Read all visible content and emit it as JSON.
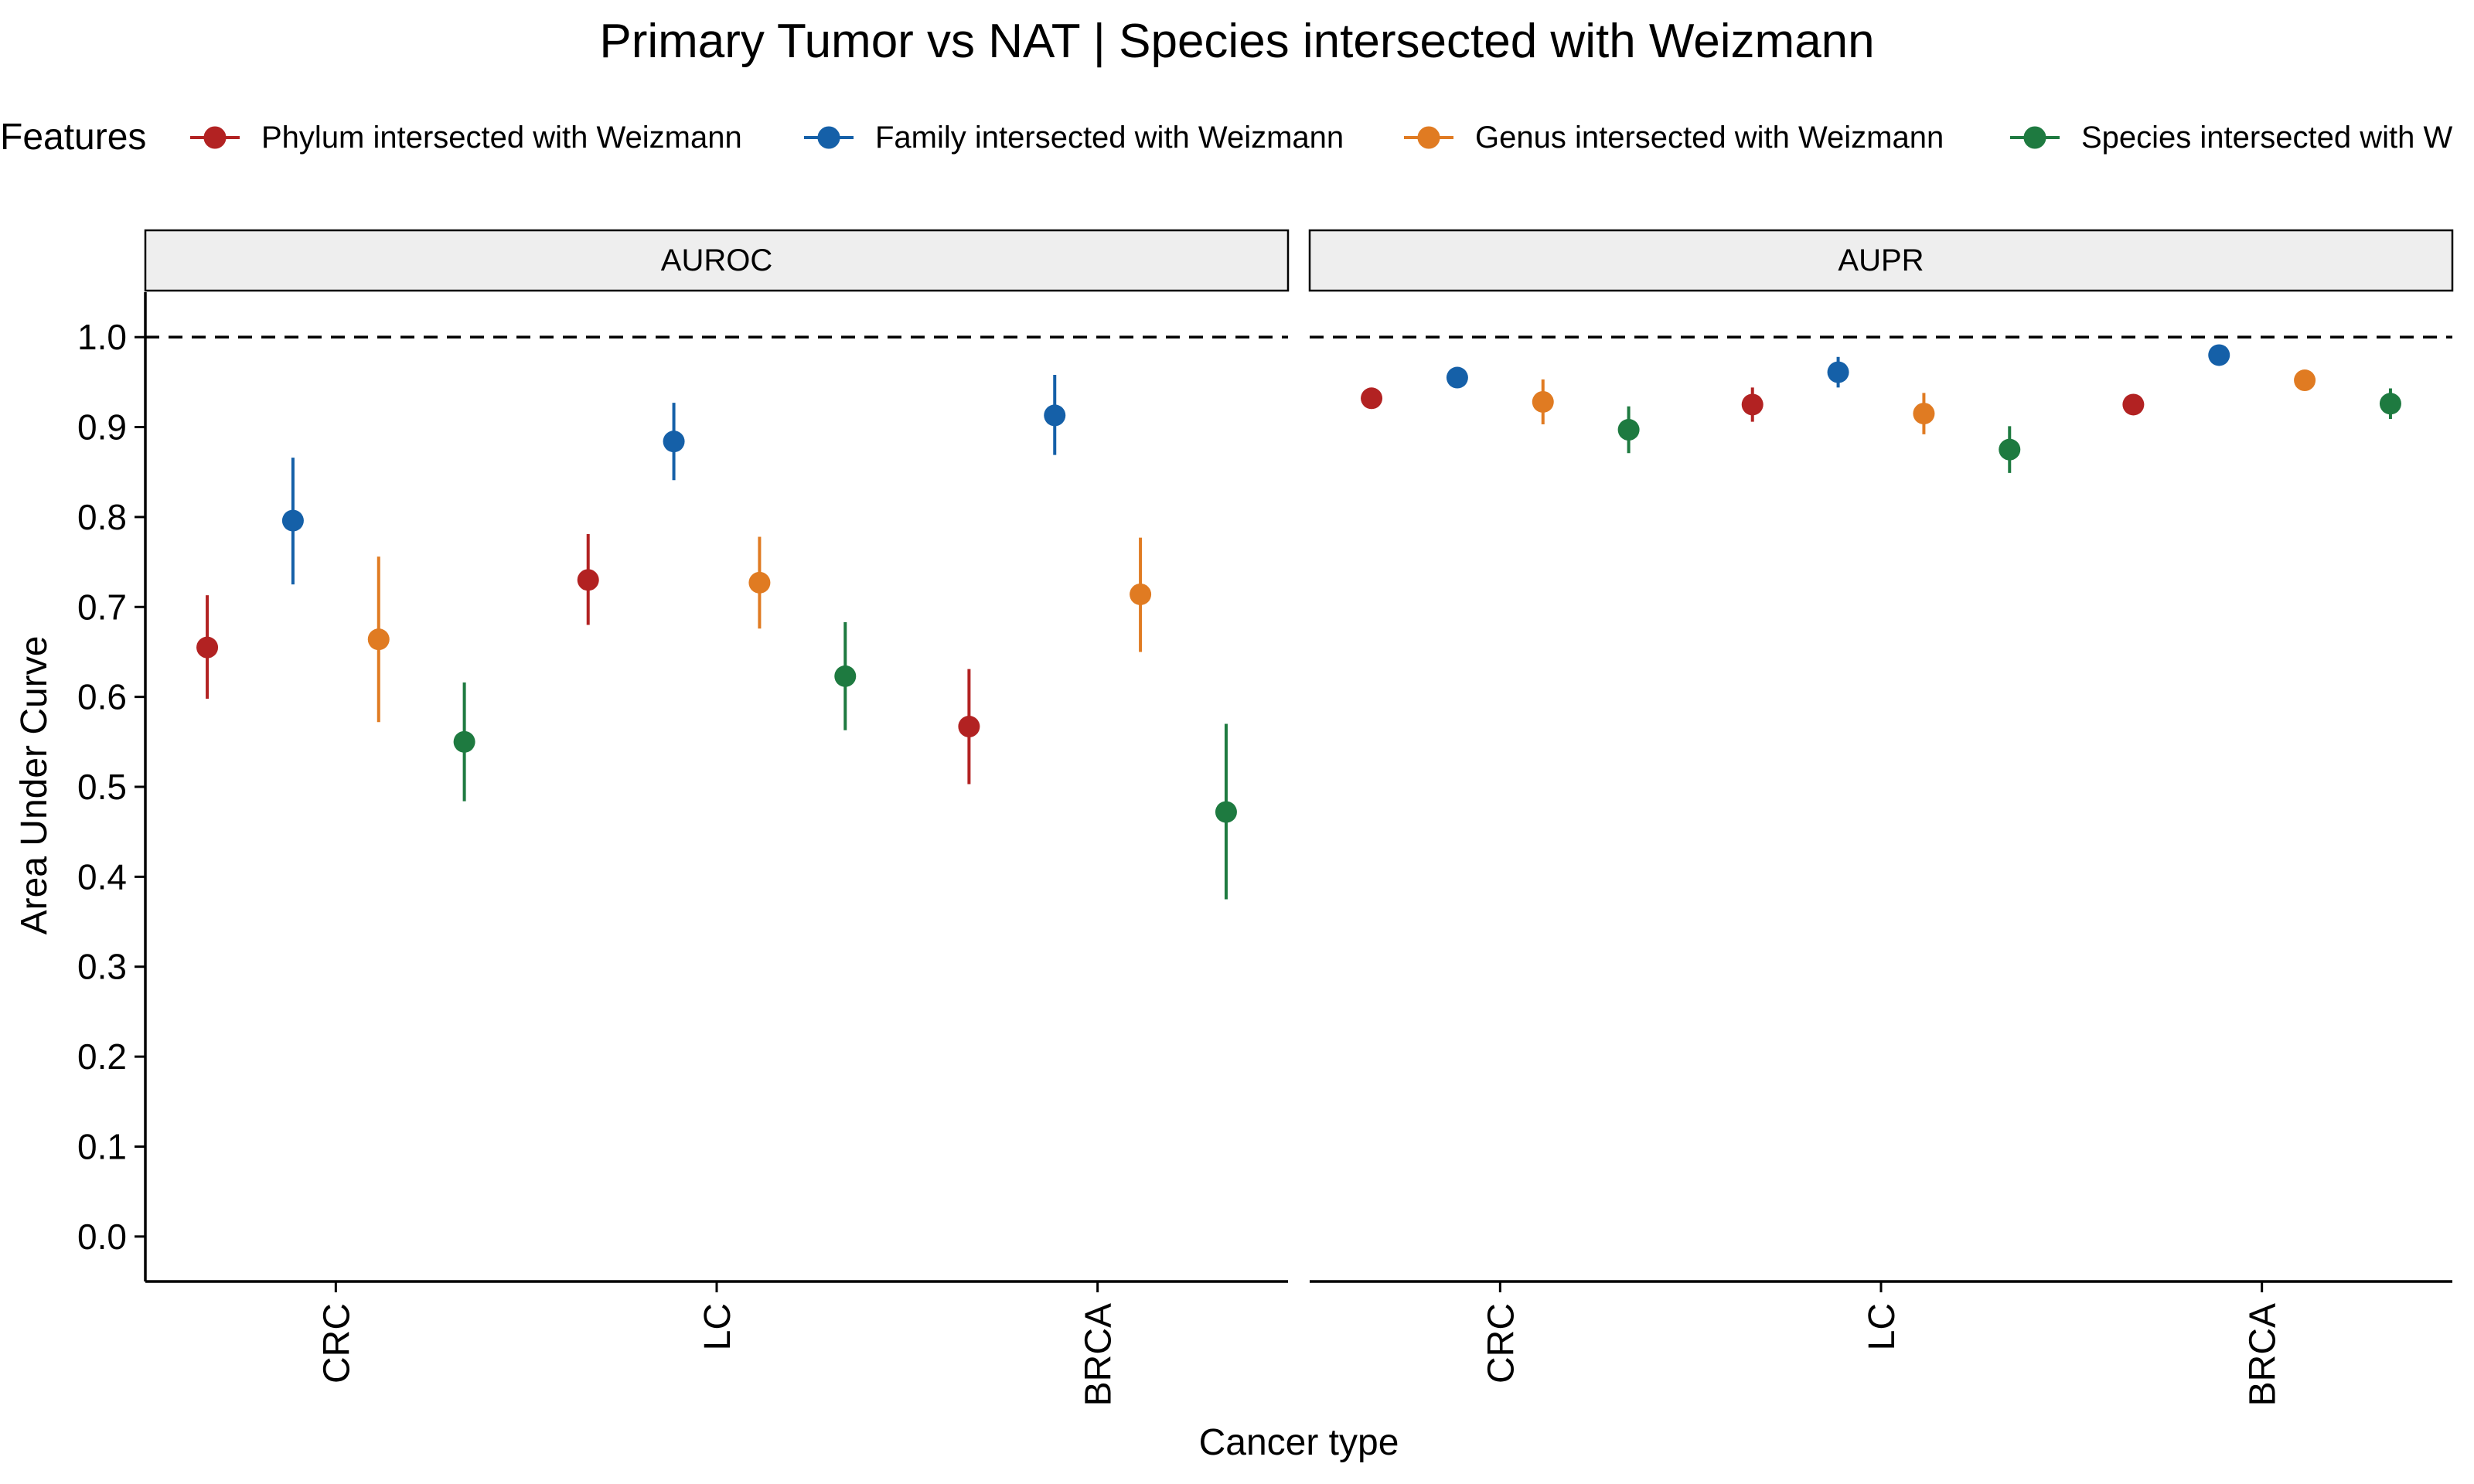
{
  "title": "Primary Tumor vs NAT | Species intersected with Weizmann",
  "legend": {
    "title": "Features",
    "items": [
      {
        "label": "Phylum intersected with Weizmann",
        "color": "#B22222"
      },
      {
        "label": "Family intersected with Weizmann",
        "color": "#1560A8"
      },
      {
        "label": "Genus intersected with Weizmann",
        "color": "#E07B22"
      },
      {
        "label": "Species intersected with W",
        "color": "#1E7A40"
      }
    ]
  },
  "chart_data": {
    "type": "scatter",
    "subtype": "point-range (dodged error bars), faceted",
    "title": "Primary Tumor vs NAT | Species intersected with Weizmann",
    "xlabel": "Cancer type",
    "ylabel": "Area Under Curve",
    "categories": [
      "CRC",
      "LC",
      "BRCA"
    ],
    "ylim": [
      -0.05,
      1.05
    ],
    "yticks": [
      "0.0",
      "0.1",
      "0.2",
      "0.3",
      "0.4",
      "0.5",
      "0.6",
      "0.7",
      "0.8",
      "0.9",
      "1.0"
    ],
    "reference_line": {
      "y": 1.0,
      "style": "dashed"
    },
    "grid": false,
    "legend_position": "top",
    "facets": [
      {
        "label": "AUROC",
        "series": [
          {
            "name": "Phylum intersected with Weizmann",
            "color": "#B22222",
            "values": [
              0.655,
              0.73,
              0.567
            ],
            "lower": [
              0.598,
              0.68,
              0.503
            ],
            "upper": [
              0.713,
              0.781,
              0.631
            ]
          },
          {
            "name": "Family intersected with Weizmann",
            "color": "#1560A8",
            "values": [
              0.796,
              0.884,
              0.913
            ],
            "lower": [
              0.725,
              0.841,
              0.869
            ],
            "upper": [
              0.866,
              0.927,
              0.958
            ]
          },
          {
            "name": "Genus intersected with Weizmann",
            "color": "#E07B22",
            "values": [
              0.664,
              0.727,
              0.714
            ],
            "lower": [
              0.572,
              0.676,
              0.65
            ],
            "upper": [
              0.756,
              0.778,
              0.777
            ]
          },
          {
            "name": "Species intersected with Weizmann",
            "color": "#1E7A40",
            "values": [
              0.55,
              0.623,
              0.472
            ],
            "lower": [
              0.484,
              0.563,
              0.375
            ],
            "upper": [
              0.616,
              0.683,
              0.57
            ]
          }
        ]
      },
      {
        "label": "AUPR",
        "series": [
          {
            "name": "Phylum intersected with Weizmann",
            "color": "#B22222",
            "values": [
              0.932,
              0.925,
              0.925
            ],
            "lower": [
              0.922,
              0.906,
              0.918
            ],
            "upper": [
              0.942,
              0.944,
              0.932
            ]
          },
          {
            "name": "Family intersected with Weizmann",
            "color": "#1560A8",
            "values": [
              0.955,
              0.961,
              0.98
            ],
            "lower": [
              0.944,
              0.944,
              0.974
            ],
            "upper": [
              0.966,
              0.978,
              0.986
            ]
          },
          {
            "name": "Genus intersected with Weizmann",
            "color": "#E07B22",
            "values": [
              0.928,
              0.915,
              0.952
            ],
            "lower": [
              0.903,
              0.892,
              0.944
            ],
            "upper": [
              0.953,
              0.938,
              0.96
            ]
          },
          {
            "name": "Species intersected with Weizmann",
            "color": "#1E7A40",
            "values": [
              0.897,
              0.875,
              0.926
            ],
            "lower": [
              0.871,
              0.849,
              0.909
            ],
            "upper": [
              0.923,
              0.901,
              0.943
            ]
          }
        ]
      }
    ]
  }
}
